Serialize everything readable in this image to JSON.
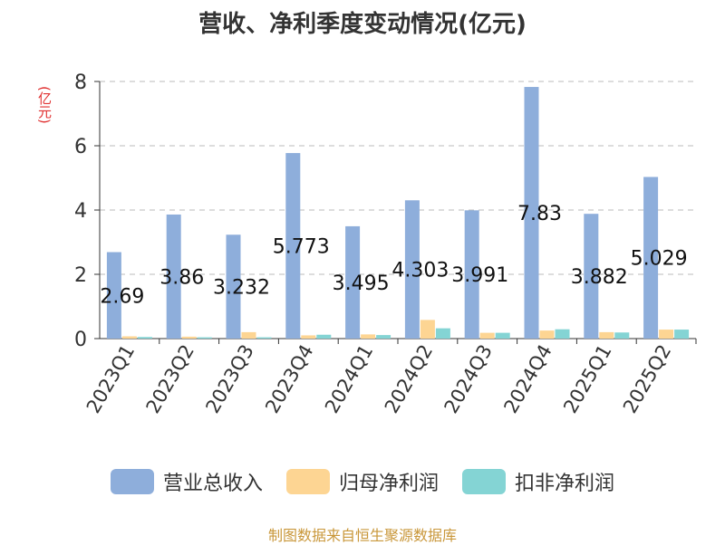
{
  "title": "营收、净利季度变动情况(亿元)",
  "unit_label": "(亿元)",
  "source": "制图数据来自恒生聚源数据库",
  "chart_data": {
    "type": "bar",
    "categories": [
      "2023Q1",
      "2023Q2",
      "2023Q3",
      "2023Q4",
      "2024Q1",
      "2024Q2",
      "2024Q3",
      "2024Q4",
      "2025Q1",
      "2025Q2"
    ],
    "ylim": [
      0,
      8
    ],
    "yticks": [
      0,
      2,
      4,
      6,
      8
    ],
    "grid": true,
    "legend_position": "bottom",
    "series": [
      {
        "name": "营业总收入",
        "color": "#8eaedb",
        "values": [
          2.69,
          3.86,
          3.232,
          5.773,
          3.495,
          4.303,
          3.991,
          7.83,
          3.882,
          5.029
        ],
        "labels": [
          "2.69",
          "3.86",
          "3.232",
          "5.773",
          "3.495",
          "4.303",
          "3.991",
          "7.83",
          "3.882",
          "5.029"
        ]
      },
      {
        "name": "归母净利润",
        "color": "#fdd593",
        "values": [
          0.07,
          0.06,
          0.2,
          0.1,
          0.13,
          0.58,
          0.18,
          0.25,
          0.2,
          0.28
        ]
      },
      {
        "name": "扣非净利润",
        "color": "#84d4d4",
        "values": [
          0.05,
          0.04,
          0.04,
          0.12,
          0.11,
          0.32,
          0.18,
          0.29,
          0.19,
          0.28
        ]
      }
    ]
  }
}
